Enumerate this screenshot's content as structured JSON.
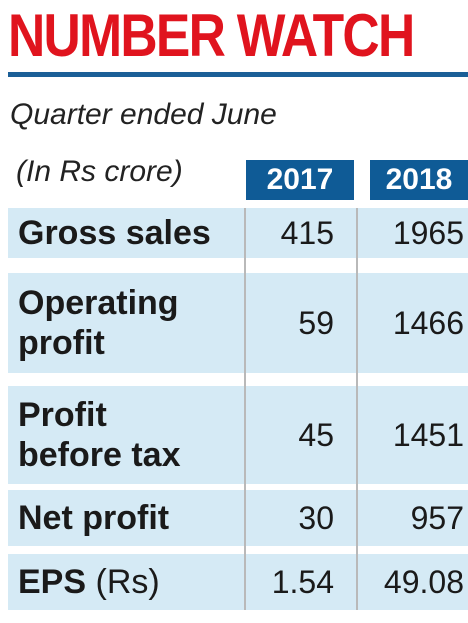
{
  "title": "NUMBER WATCH",
  "subtitle": "Quarter ended  June",
  "unit_note": "(In Rs crore)",
  "years": [
    "2017",
    "2018"
  ],
  "rows": [
    {
      "label": "Gross sales",
      "unit": "",
      "v2017": "415",
      "v2018": "1965"
    },
    {
      "label_line1": "Operating",
      "label_line2": "profit",
      "v2017": "59",
      "v2018": "1466"
    },
    {
      "label_line1": "Profit",
      "label_line2": "before tax",
      "v2017": "45",
      "v2018": "1451"
    },
    {
      "label": "Net profit",
      "unit": "",
      "v2017": "30",
      "v2018": "957"
    },
    {
      "label": "EPS",
      "unit": "(Rs)",
      "v2017": "1.54",
      "v2018": "49.08"
    }
  ],
  "colors": {
    "title": "#e0141e",
    "rule": "#1b5f97",
    "year_header_bg": "#0f5b96",
    "row_bg": "#d5eaf5"
  }
}
